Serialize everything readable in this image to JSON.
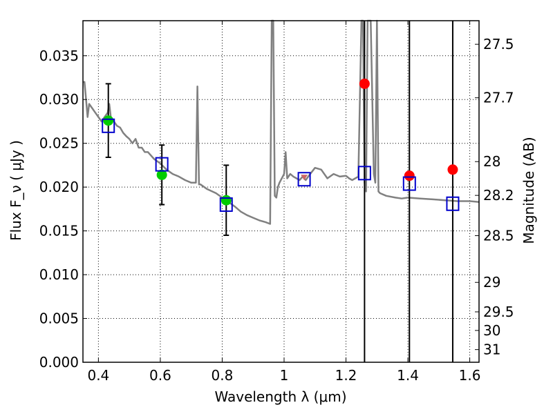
{
  "chart_data": {
    "type": "scatter",
    "title": "",
    "xlabel": "Wavelength  λ (μm)",
    "ylabel": "Flux  F_ν  ( μJy )",
    "ylabel_right": "Magnitude (AB)",
    "xlim": [
      0.35,
      1.63
    ],
    "ylim": [
      0.0,
      0.039
    ],
    "xticks": [
      "0.4",
      "0.6",
      "0.8",
      "1",
      "1.2",
      "1.4",
      "1.6"
    ],
    "xtick_values": [
      0.4,
      0.6,
      0.8,
      1.0,
      1.2,
      1.4,
      1.6
    ],
    "yticks": [
      "0.000",
      "0.005",
      "0.010",
      "0.015",
      "0.020",
      "0.025",
      "0.030",
      "0.035"
    ],
    "ytick_values": [
      0.0,
      0.005,
      0.01,
      0.015,
      0.02,
      0.025,
      0.03,
      0.035
    ],
    "right_ticks": [
      "27.5",
      "27.7",
      "28",
      "28.2",
      "28.5",
      "29",
      "29.5",
      "30",
      "31"
    ],
    "right_tick_values": [
      27.5,
      27.7,
      28.0,
      28.2,
      28.5,
      29.0,
      29.5,
      30.0,
      31.0
    ],
    "grid": true,
    "colors": {
      "template": "#808080",
      "model_box": "#0000cc",
      "detections": "#00cc00",
      "upper_limits": "#ff0000",
      "marker": "#cc6666",
      "lines": "#000000"
    },
    "template_spectrum": {
      "name": "",
      "x": [
        0.35,
        0.355,
        0.36,
        0.365,
        0.37,
        0.38,
        0.39,
        0.4,
        0.41,
        0.42,
        0.43,
        0.435,
        0.44,
        0.45,
        0.46,
        0.47,
        0.48,
        0.49,
        0.5,
        0.51,
        0.52,
        0.53,
        0.54,
        0.55,
        0.56,
        0.58,
        0.6,
        0.62,
        0.64,
        0.66,
        0.68,
        0.7,
        0.715,
        0.72,
        0.725,
        0.73,
        0.75,
        0.78,
        0.8,
        0.82,
        0.84,
        0.86,
        0.88,
        0.9,
        0.92,
        0.94,
        0.955,
        0.96,
        0.965,
        0.97,
        0.975,
        0.98,
        0.985,
        1.0,
        1.005,
        1.01,
        1.02,
        1.03,
        1.04,
        1.05,
        1.06,
        1.07,
        1.08,
        1.1,
        1.12,
        1.14,
        1.16,
        1.18,
        1.2,
        1.21,
        1.22,
        1.23,
        1.24,
        1.25,
        1.255,
        1.26,
        1.265,
        1.27,
        1.28,
        1.29,
        1.295,
        1.3,
        1.305,
        1.31,
        1.33,
        1.36,
        1.38,
        1.4,
        1.44,
        1.48,
        1.52,
        1.56,
        1.6,
        1.63
      ],
      "y": [
        0.032,
        0.032,
        0.03,
        0.028,
        0.0295,
        0.029,
        0.0285,
        0.028,
        0.0275,
        0.028,
        0.0285,
        0.0295,
        0.028,
        0.0275,
        0.027,
        0.0268,
        0.0262,
        0.0258,
        0.0255,
        0.025,
        0.0255,
        0.0245,
        0.0245,
        0.024,
        0.024,
        0.0232,
        0.0227,
        0.022,
        0.0215,
        0.0212,
        0.0208,
        0.0205,
        0.0205,
        0.0315,
        0.0203,
        0.0203,
        0.0198,
        0.0193,
        0.0188,
        0.0183,
        0.0178,
        0.0172,
        0.0168,
        0.0165,
        0.0162,
        0.016,
        0.0158,
        0.039,
        0.039,
        0.019,
        0.0188,
        0.02,
        0.0205,
        0.0215,
        0.024,
        0.021,
        0.0215,
        0.0212,
        0.021,
        0.0208,
        0.0212,
        0.0208,
        0.0213,
        0.0222,
        0.022,
        0.021,
        0.0215,
        0.0212,
        0.0213,
        0.021,
        0.0208,
        0.021,
        0.0212,
        0.039,
        0.039,
        0.0205,
        0.0195,
        0.039,
        0.039,
        0.0215,
        0.0205,
        0.039,
        0.0195,
        0.0193,
        0.019,
        0.0188,
        0.0187,
        0.0188,
        0.0187,
        0.0186,
        0.0185,
        0.0184,
        0.0184,
        0.0183
      ]
    },
    "series": [
      {
        "name": "",
        "marker": "green-circle",
        "x": [
          0.432,
          0.605,
          0.813
        ],
        "y": [
          0.0276,
          0.0214,
          0.0185
        ],
        "yerr": [
          0.0042,
          0.0034,
          0.004
        ]
      },
      {
        "name": "",
        "marker": "red-circle",
        "x": [
          1.26,
          1.405,
          1.545
        ],
        "y": [
          0.0318,
          0.0213,
          0.022
        ]
      },
      {
        "name": "",
        "marker": "blue-open-square",
        "x": [
          0.432,
          0.605,
          0.813,
          1.065,
          1.26,
          1.405,
          1.545
        ],
        "y": [
          0.027,
          0.0226,
          0.018,
          0.0209,
          0.0216,
          0.0204,
          0.0181
        ]
      },
      {
        "name": "",
        "marker": "pink-triangle",
        "x": [
          1.065
        ],
        "y": [
          0.0211
        ]
      }
    ],
    "vertical_lines_x": [
      1.26,
      1.405,
      1.545
    ]
  }
}
